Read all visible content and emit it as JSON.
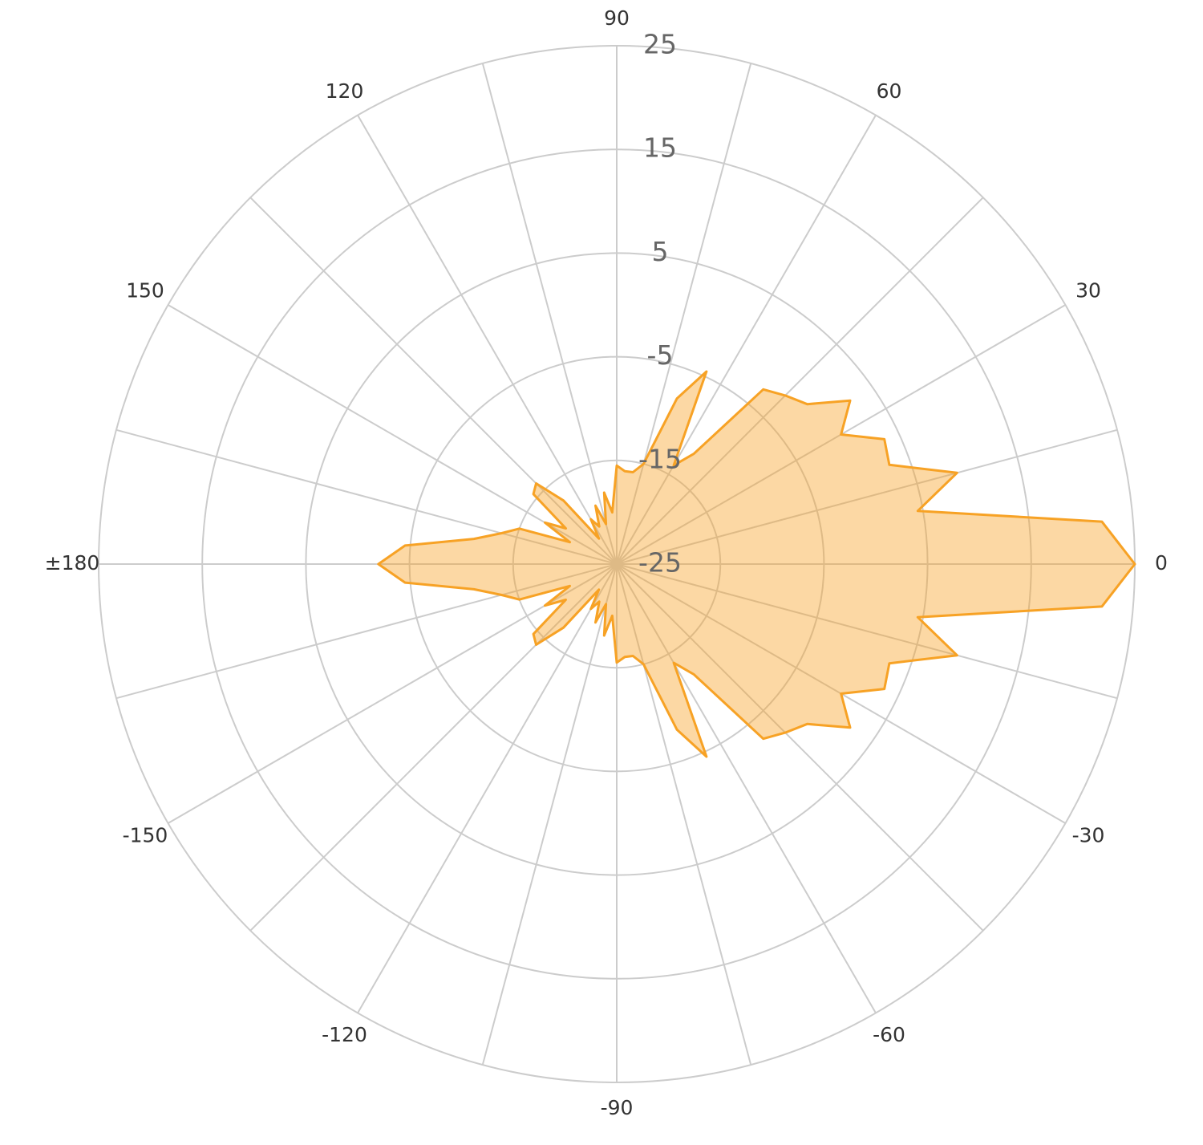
{
  "chart_data": {
    "type": "polar",
    "theta": [
      -180,
      -175,
      -170,
      -165,
      -160,
      -155,
      -150,
      -145,
      -140,
      -135,
      -130,
      -125,
      -120,
      -115,
      -110,
      -105,
      -100,
      -95,
      -90,
      -85,
      -80,
      -75,
      -70,
      -65,
      -60,
      -55,
      -50,
      -45,
      -40,
      -35,
      -30,
      -25,
      -20,
      -15,
      -10,
      -5,
      0,
      5,
      10,
      15,
      20,
      25,
      30,
      35,
      40,
      45,
      50,
      55,
      60,
      65,
      70,
      75,
      80,
      85,
      90,
      95,
      100,
      105,
      110,
      115,
      120,
      125,
      130,
      135,
      140,
      145,
      150,
      155,
      160,
      165,
      170,
      175,
      180
    ],
    "values": [
      -2,
      -4.5,
      -11,
      -13.5,
      -15,
      -20,
      -17,
      -19,
      -14.5,
      -14,
      -17,
      -22,
      -20,
      -21,
      -19,
      -21,
      -18,
      -20,
      -15.5,
      -16,
      -16,
      -15,
      -8,
      -4.5,
      -14,
      -12,
      -3,
      -2,
      -1,
      2.5,
      0,
      3.5,
      3,
      9,
      4.5,
      22,
      25,
      22,
      4.5,
      9,
      3,
      3.5,
      0,
      2.5,
      -1,
      -2,
      -3,
      -12,
      -14,
      -4.5,
      -8,
      -15,
      -16,
      -16,
      -15.5,
      -20,
      -18,
      -21,
      -19,
      -21,
      -20,
      -22,
      -17,
      -14,
      -14.5,
      -19,
      -17,
      -20,
      -15,
      -13.5,
      -11,
      -4.5,
      -2
    ],
    "color": "#f7a225",
    "rlim": [
      -25,
      25
    ],
    "rticks": [
      -25,
      -15,
      -5,
      5,
      15,
      25
    ],
    "thetaticks": [
      0,
      30,
      60,
      90,
      120,
      150,
      {
        "value": 180,
        "label": "±180"
      },
      -150,
      -120,
      -90,
      -60,
      -30
    ],
    "theta_gridlines": [
      0,
      15,
      30,
      45,
      60,
      75,
      90,
      105,
      120,
      135,
      150,
      165,
      180,
      195,
      210,
      225,
      240,
      255,
      270,
      285,
      300,
      315,
      330,
      345
    ]
  }
}
